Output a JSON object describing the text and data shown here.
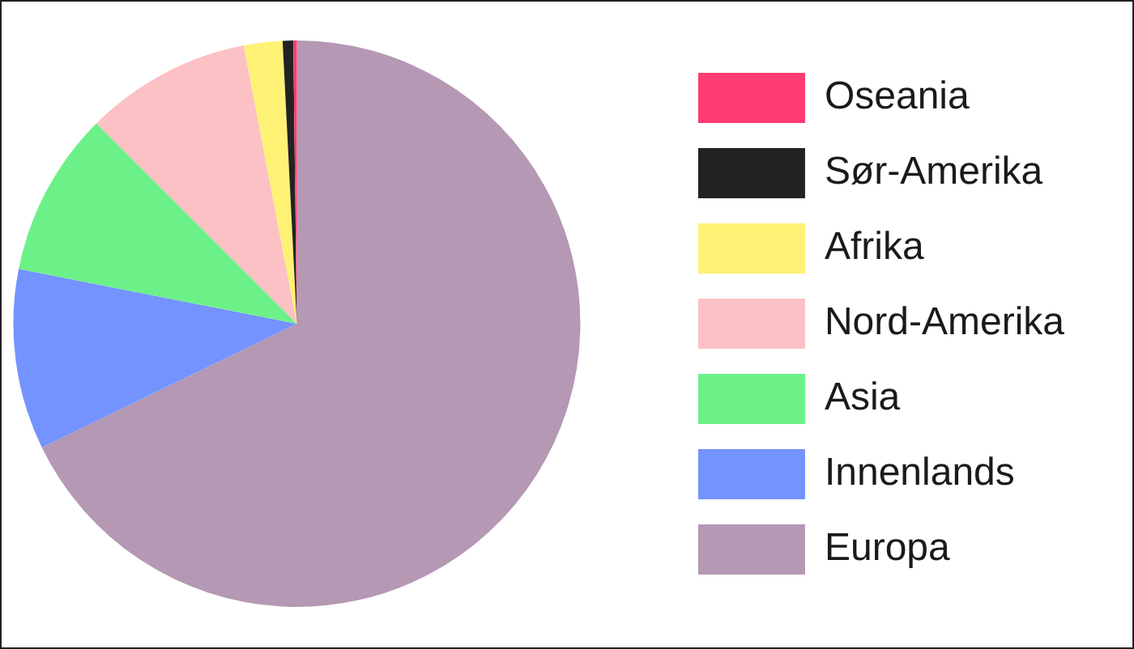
{
  "chart_data": {
    "type": "pie",
    "categories": [
      "Oseania",
      "Sør-Amerika",
      "Afrika",
      "Nord-Amerika",
      "Asia",
      "Innenlands",
      "Europa"
    ],
    "values": [
      0.2,
      0.6,
      2.2,
      9.5,
      9.4,
      10.3,
      67.8
    ],
    "colors": [
      "#fe3b72",
      "#222222",
      "#fef275",
      "#fcc1c4",
      "#6cf188",
      "#7493fe",
      "#b498b4"
    ],
    "legend": "right"
  }
}
